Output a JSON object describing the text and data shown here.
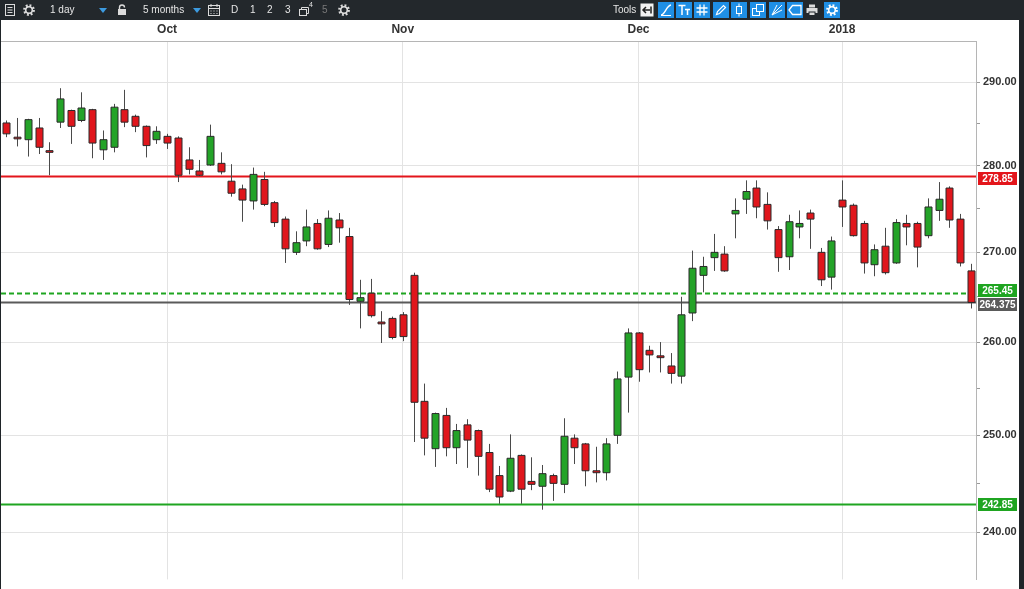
{
  "chart_data": {
    "type": "candlestick",
    "categories": [
      null,
      null,
      null,
      null,
      null,
      null,
      null,
      null,
      null,
      null,
      null,
      null,
      null,
      null,
      null,
      "Oct",
      null,
      null,
      null,
      null,
      null,
      null,
      null,
      null,
      null,
      null,
      null,
      null,
      null,
      null,
      null,
      null,
      null,
      null,
      null,
      null,
      null,
      "Nov",
      null,
      null,
      null,
      null,
      null,
      null,
      null,
      null,
      null,
      null,
      null,
      null,
      null,
      null,
      null,
      null,
      null,
      null,
      null,
      null,
      null,
      "Dec",
      null,
      null,
      null,
      null,
      null,
      null,
      null,
      null,
      null,
      null,
      null,
      null,
      null,
      null,
      null,
      null,
      null,
      null,
      "2018",
      null,
      null,
      null,
      null,
      null,
      null,
      null,
      null,
      null,
      null,
      null,
      null
    ],
    "ohlc": [
      [
        285.1,
        285.4,
        283.4,
        283.8
      ],
      [
        283.4,
        285.7,
        282.3,
        283.2
      ],
      [
        283.1,
        285.6,
        281.1,
        285.5
      ],
      [
        284.5,
        285.7,
        281.4,
        282.2
      ],
      [
        281.8,
        282.8,
        278.9,
        281.6
      ],
      [
        285.2,
        289.3,
        284.5,
        288.0
      ],
      [
        286.6,
        286.7,
        282.6,
        284.7
      ],
      [
        285.4,
        288.8,
        285.2,
        286.9
      ],
      [
        286.7,
        286.8,
        280.9,
        282.7
      ],
      [
        281.9,
        284.2,
        280.7,
        283.1
      ],
      [
        282.2,
        287.4,
        281.6,
        287.0
      ],
      [
        286.7,
        289.1,
        284.6,
        285.2
      ],
      [
        285.9,
        286.1,
        284.0,
        284.7
      ],
      [
        284.7,
        284.8,
        281.0,
        282.4
      ],
      [
        283.1,
        284.7,
        282.6,
        284.1
      ],
      [
        283.5,
        283.8,
        282.0,
        282.7
      ],
      [
        283.3,
        283.5,
        278.1,
        278.9
      ],
      [
        280.7,
        282.2,
        279.0,
        279.6
      ],
      [
        279.4,
        280.7,
        278.8,
        278.9
      ],
      [
        280.1,
        284.9,
        280.0,
        283.5
      ],
      [
        280.3,
        281.6,
        279.0,
        279.3
      ],
      [
        278.2,
        280.2,
        276.4,
        276.8
      ],
      [
        277.3,
        277.8,
        273.5,
        276.0
      ],
      [
        275.9,
        279.8,
        274.9,
        279.0
      ],
      [
        278.4,
        279.3,
        275.3,
        275.5
      ],
      [
        275.7,
        275.9,
        272.9,
        273.4
      ],
      [
        273.8,
        274.1,
        268.8,
        270.4
      ],
      [
        270.0,
        272.4,
        269.7,
        271.1
      ],
      [
        271.3,
        274.9,
        270.7,
        272.9
      ],
      [
        273.3,
        273.8,
        270.3,
        270.4
      ],
      [
        270.9,
        274.8,
        270.6,
        273.9
      ],
      [
        273.7,
        274.5,
        271.1,
        272.8
      ],
      [
        271.8,
        272.8,
        264.1,
        264.7
      ],
      [
        264.5,
        266.9,
        261.5,
        264.9
      ],
      [
        265.4,
        267.0,
        262.7,
        262.9
      ],
      [
        262.2,
        263.4,
        259.9,
        262.0
      ],
      [
        262.6,
        262.8,
        260.3,
        260.5
      ],
      [
        263.0,
        263.3,
        260.1,
        260.6
      ],
      [
        267.4,
        267.7,
        249.3,
        253.5
      ],
      [
        253.6,
        255.5,
        247.9,
        249.7
      ],
      [
        248.6,
        252.4,
        246.7,
        252.3
      ],
      [
        252.1,
        252.9,
        247.8,
        248.7
      ],
      [
        248.7,
        251.2,
        247.0,
        250.5
      ],
      [
        251.1,
        251.7,
        246.6,
        249.5
      ],
      [
        250.5,
        250.6,
        245.8,
        247.8
      ],
      [
        248.2,
        249.1,
        244.1,
        244.4
      ],
      [
        245.8,
        246.8,
        242.9,
        243.6
      ],
      [
        244.2,
        250.1,
        244.1,
        247.6
      ],
      [
        247.9,
        248.0,
        242.9,
        244.4
      ],
      [
        245.2,
        247.7,
        244.3,
        244.9
      ],
      [
        244.7,
        246.9,
        242.3,
        246.0
      ],
      [
        245.8,
        246.0,
        243.2,
        245.0
      ],
      [
        244.9,
        251.8,
        244.0,
        249.9
      ],
      [
        249.7,
        250.1,
        247.0,
        248.7
      ],
      [
        249.1,
        249.2,
        244.7,
        246.3
      ],
      [
        246.3,
        248.8,
        245.1,
        246.1
      ],
      [
        246.1,
        249.7,
        245.3,
        249.1
      ],
      [
        250.0,
        256.8,
        249.1,
        256.0
      ],
      [
        256.2,
        261.5,
        252.4,
        261.0
      ],
      [
        261.0,
        261.1,
        255.7,
        257.0
      ],
      [
        259.1,
        259.6,
        256.7,
        258.6
      ],
      [
        258.5,
        260.0,
        256.7,
        258.3
      ],
      [
        257.4,
        258.8,
        255.5,
        256.6
      ],
      [
        256.3,
        265.0,
        255.5,
        263.0
      ],
      [
        263.2,
        270.2,
        262.3,
        268.2
      ],
      [
        267.4,
        269.5,
        265.5,
        268.4
      ],
      [
        269.4,
        272.1,
        267.9,
        270.0
      ],
      [
        269.8,
        270.7,
        267.8,
        267.9
      ],
      [
        274.4,
        276.2,
        271.6,
        274.8
      ],
      [
        276.1,
        278.3,
        274.4,
        277.0
      ],
      [
        277.4,
        278.3,
        273.9,
        275.2
      ],
      [
        275.5,
        276.9,
        272.6,
        273.6
      ],
      [
        272.6,
        273.0,
        267.8,
        269.4
      ],
      [
        269.5,
        274.3,
        268.0,
        273.5
      ],
      [
        272.9,
        274.8,
        271.6,
        273.3
      ],
      [
        274.5,
        274.9,
        270.4,
        273.8
      ],
      [
        270.0,
        270.5,
        266.2,
        266.9
      ],
      [
        267.2,
        271.8,
        265.8,
        271.3
      ],
      [
        276.0,
        278.3,
        272.9,
        275.2
      ],
      [
        275.4,
        275.6,
        271.8,
        271.9
      ],
      [
        273.3,
        273.6,
        267.6,
        268.8
      ],
      [
        268.6,
        270.9,
        267.3,
        270.3
      ],
      [
        270.7,
        272.8,
        267.5,
        267.7
      ],
      [
        268.8,
        273.8,
        268.7,
        273.4
      ],
      [
        273.3,
        274.3,
        270.8,
        272.9
      ],
      [
        273.3,
        273.5,
        268.3,
        270.6
      ],
      [
        271.9,
        276.2,
        271.6,
        275.2
      ],
      [
        274.8,
        278.1,
        273.6,
        276.1
      ],
      [
        277.4,
        277.6,
        272.8,
        273.7
      ],
      [
        273.8,
        274.4,
        268.4,
        268.8
      ],
      [
        267.9,
        268.7,
        263.7,
        264.375
      ]
    ],
    "colors": [
      "#e0161c",
      "#e0161c",
      "#24a328",
      "#e0161c",
      "#e0161c",
      "#24a328",
      "#e0161c",
      "#24a328",
      "#e0161c",
      "#24a328",
      "#24a328",
      "#e0161c",
      "#e0161c",
      "#e0161c",
      "#24a328",
      "#e0161c",
      "#e0161c",
      "#e0161c",
      "#e0161c",
      "#24a328",
      "#e0161c",
      "#e0161c",
      "#e0161c",
      "#24a328",
      "#e0161c",
      "#e0161c",
      "#e0161c",
      "#24a328",
      "#24a328",
      "#e0161c",
      "#24a328",
      "#e0161c",
      "#e0161c",
      "#24a328",
      "#e0161c",
      "#e0161c",
      "#e0161c",
      "#e0161c",
      "#e0161c",
      "#e0161c",
      "#24a328",
      "#e0161c",
      "#24a328",
      "#e0161c",
      "#e0161c",
      "#e0161c",
      "#e0161c",
      "#24a328",
      "#e0161c",
      "#e0161c",
      "#24a328",
      "#e0161c",
      "#24a328",
      "#e0161c",
      "#e0161c",
      "#e0161c",
      "#24a328",
      "#24a328",
      "#24a328",
      "#e0161c",
      "#e0161c",
      "#e0161c",
      "#e0161c",
      "#24a328",
      "#24a328",
      "#24a328",
      "#24a328",
      "#e0161c",
      "#24a328",
      "#24a328",
      "#e0161c",
      "#e0161c",
      "#e0161c",
      "#24a328",
      "#24a328",
      "#e0161c",
      "#e0161c",
      "#24a328",
      "#e0161c",
      "#e0161c",
      "#e0161c",
      "#24a328",
      "#e0161c",
      "#24a328",
      "#e0161c",
      "#e0161c",
      "#24a328",
      "#24a328",
      "#e0161c",
      "#e0161c",
      "#e0161c"
    ],
    "ylim": [
      235.3,
      295.1
    ],
    "yticks": [
      {
        "value": 240,
        "label": "240.00"
      },
      {
        "value": 245,
        "label": null
      },
      {
        "value": 250,
        "label": "250.00"
      },
      {
        "value": 255,
        "label": null
      },
      {
        "value": 260,
        "label": "260.00"
      },
      {
        "value": 265,
        "label": null
      },
      {
        "value": 270,
        "label": "270.00"
      },
      {
        "value": 275,
        "label": null
      },
      {
        "value": 280,
        "label": "280.00"
      },
      {
        "value": 285,
        "label": null
      },
      {
        "value": 290,
        "label": "290.00"
      }
    ],
    "log": true,
    "grid": true,
    "ref_lines": [
      {
        "axis": "y",
        "value": 278.85,
        "label": "278.85",
        "color": "#e3151b"
      },
      {
        "axis": "y",
        "value": 265.45,
        "label": "265.45",
        "color": "#1fa521",
        "line_style": "dashed"
      },
      {
        "axis": "y",
        "value": 264.375,
        "label": "264.375",
        "color": "#5a5a5a"
      },
      {
        "axis": "y",
        "value": 242.85,
        "label": "242.85",
        "color": "#1fa521"
      }
    ],
    "annotations": [
      "1 day",
      "5 months",
      "D",
      "1",
      "2",
      "3",
      "4",
      "5",
      "Tools"
    ]
  }
}
